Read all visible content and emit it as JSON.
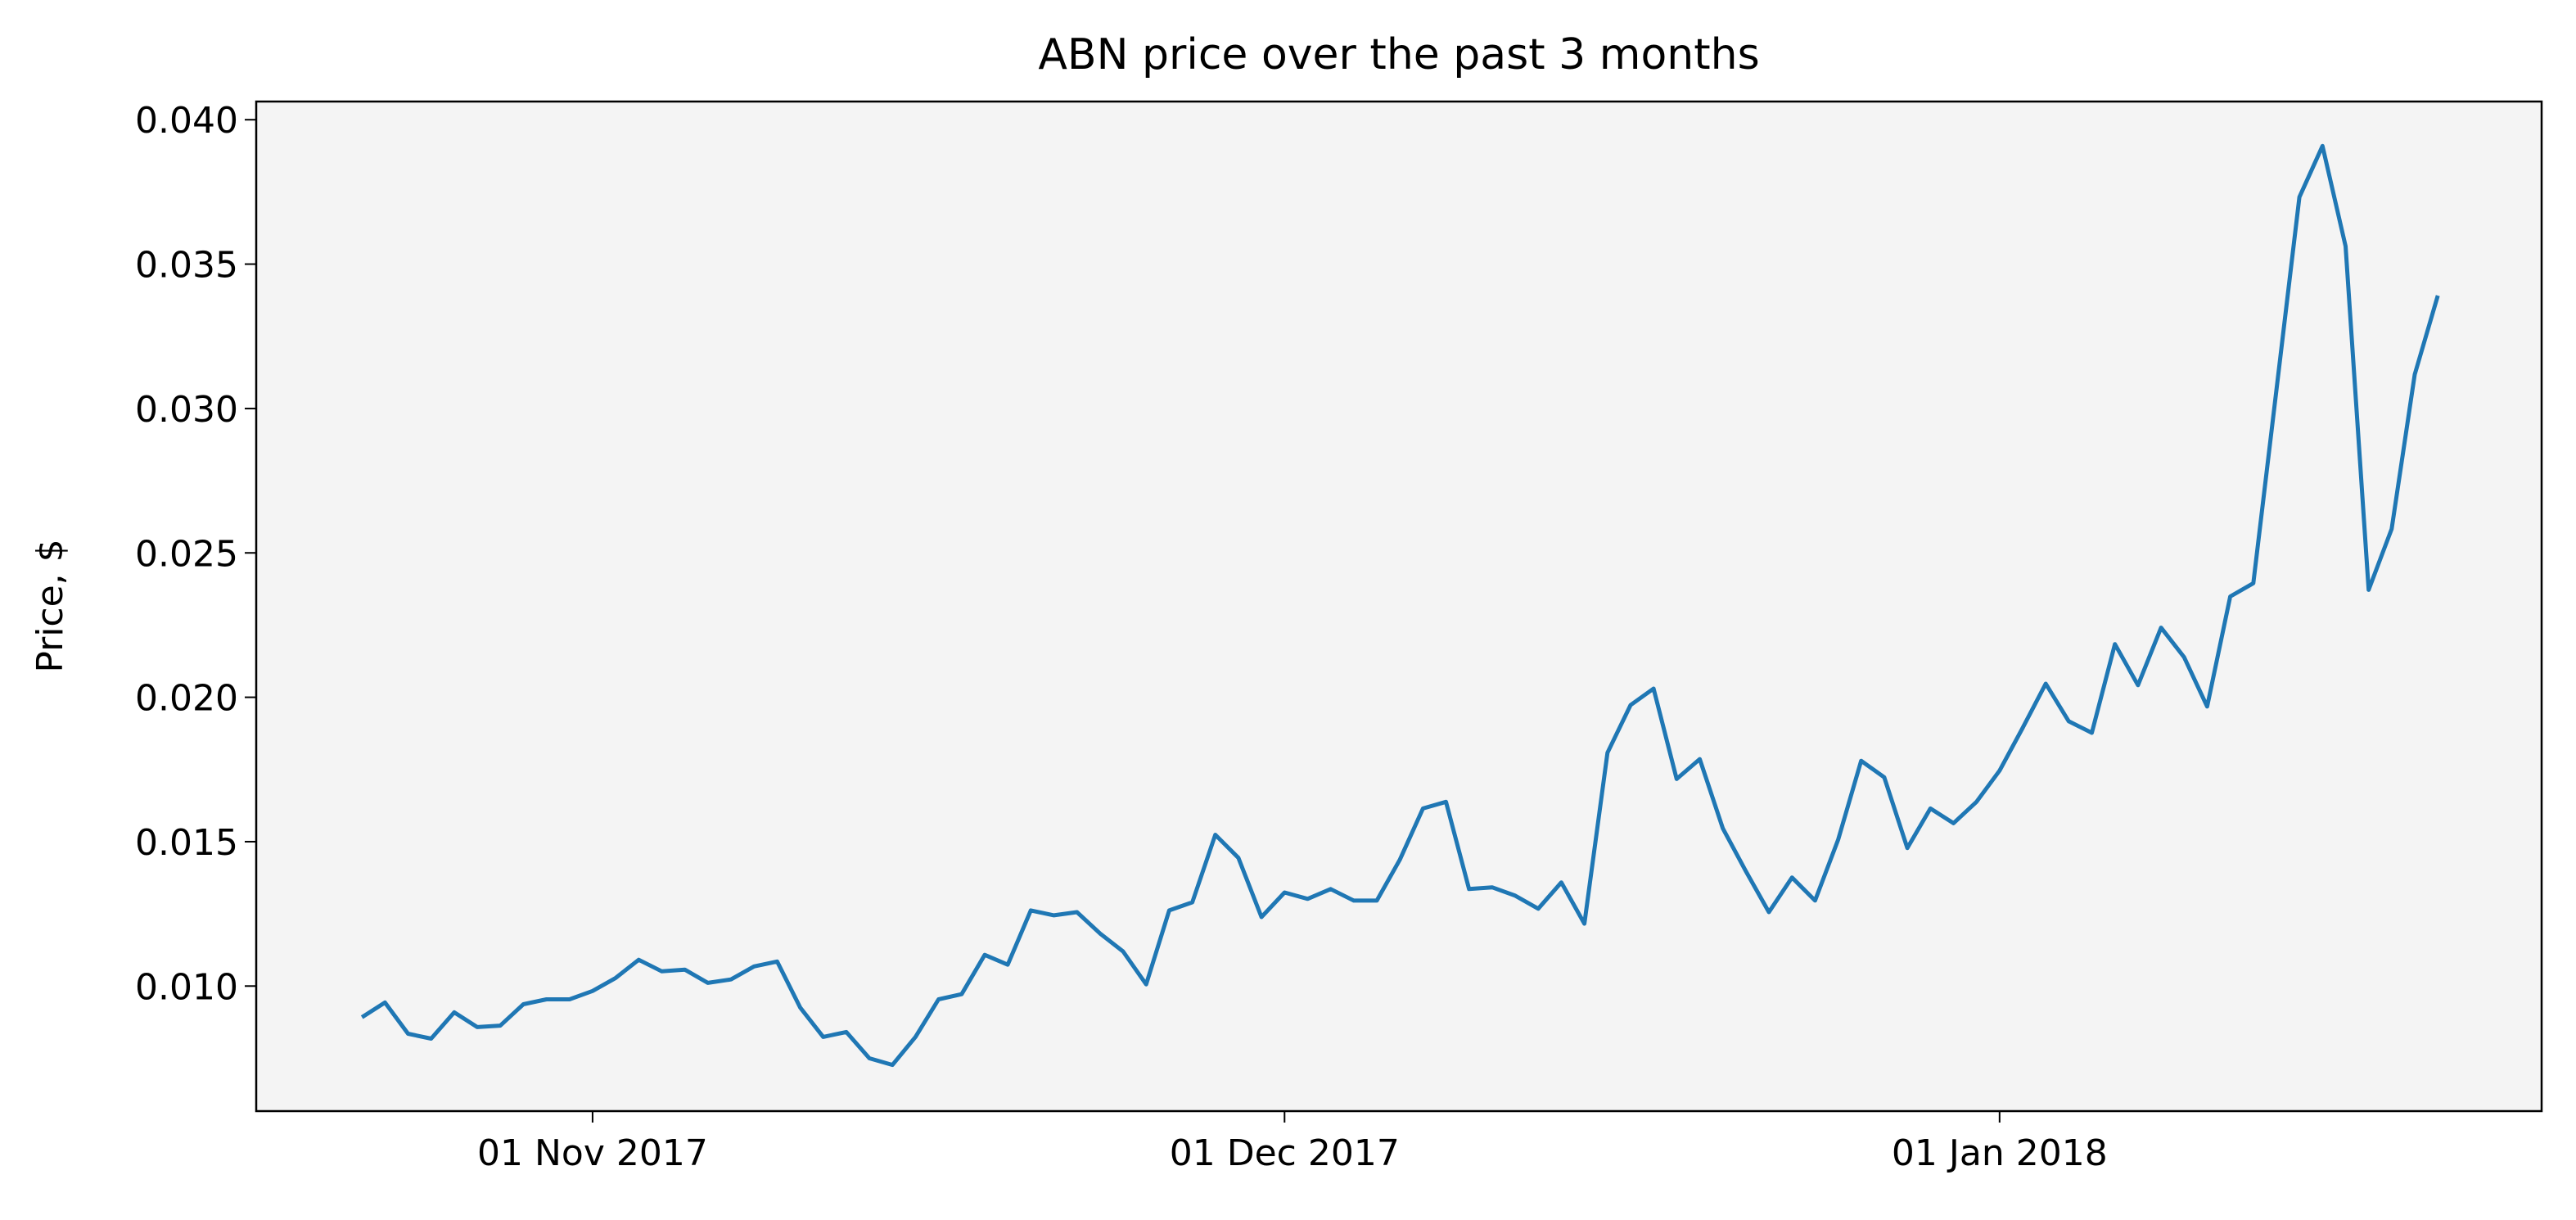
{
  "chart_data": {
    "type": "line",
    "title": "ABN price over the past 3 months",
    "ylabel": "Price, $",
    "x": [
      "2017-10-22",
      "2017-10-23",
      "2017-10-24",
      "2017-10-25",
      "2017-10-26",
      "2017-10-27",
      "2017-10-28",
      "2017-10-29",
      "2017-10-30",
      "2017-10-31",
      "2017-11-01",
      "2017-11-02",
      "2017-11-03",
      "2017-11-04",
      "2017-11-05",
      "2017-11-06",
      "2017-11-07",
      "2017-11-08",
      "2017-11-09",
      "2017-11-10",
      "2017-11-11",
      "2017-11-12",
      "2017-11-13",
      "2017-11-14",
      "2017-11-15",
      "2017-11-16",
      "2017-11-17",
      "2017-11-18",
      "2017-11-19",
      "2017-11-20",
      "2017-11-21",
      "2017-11-22",
      "2017-11-23",
      "2017-11-24",
      "2017-11-25",
      "2017-11-26",
      "2017-11-27",
      "2017-11-28",
      "2017-11-29",
      "2017-11-30",
      "2017-12-01",
      "2017-12-02",
      "2017-12-03",
      "2017-12-04",
      "2017-12-05",
      "2017-12-06",
      "2017-12-07",
      "2017-12-08",
      "2017-12-09",
      "2017-12-10",
      "2017-12-11",
      "2017-12-12",
      "2017-12-13",
      "2017-12-14",
      "2017-12-15",
      "2017-12-16",
      "2017-12-17",
      "2017-12-18",
      "2017-12-19",
      "2017-12-20",
      "2017-12-21",
      "2017-12-22",
      "2017-12-23",
      "2017-12-24",
      "2017-12-25",
      "2017-12-26",
      "2017-12-27",
      "2017-12-28",
      "2017-12-29",
      "2017-12-30",
      "2017-12-31",
      "2018-01-01",
      "2018-01-02",
      "2018-01-03",
      "2018-01-04",
      "2018-01-05",
      "2018-01-06",
      "2018-01-07",
      "2018-01-08",
      "2018-01-09",
      "2018-01-10",
      "2018-01-11",
      "2018-01-12",
      "2018-01-13",
      "2018-01-14",
      "2018-01-15",
      "2018-01-16",
      "2018-01-17",
      "2018-01-18",
      "2018-01-19",
      "2018-01-20"
    ],
    "series": [
      {
        "color": "#1f77b4",
        "values": [
          0.00892,
          0.00943,
          0.00835,
          0.00818,
          0.00909,
          0.00858,
          0.00863,
          0.00937,
          0.00954,
          0.00954,
          0.00983,
          0.01028,
          0.01091,
          0.01051,
          0.01057,
          0.01011,
          0.01023,
          0.01068,
          0.01085,
          0.00926,
          0.00824,
          0.00841,
          0.0075,
          0.00727,
          0.00824,
          0.00954,
          0.00972,
          0.01108,
          0.01074,
          0.01262,
          0.01245,
          0.01256,
          0.01182,
          0.0112,
          0.01006,
          0.01262,
          0.0129,
          0.01524,
          0.01444,
          0.01239,
          0.01324,
          0.01302,
          0.01336,
          0.01296,
          0.01296,
          0.01438,
          0.01615,
          0.01638,
          0.01336,
          0.01342,
          0.01313,
          0.01268,
          0.01359,
          0.01216,
          0.01808,
          0.01973,
          0.0203,
          0.01717,
          0.01786,
          0.01546,
          0.01398,
          0.01256,
          0.01376,
          0.01296,
          0.01507,
          0.0178,
          0.01723,
          0.01478,
          0.01615,
          0.01564,
          0.01638,
          0.01746,
          0.01894,
          0.02047,
          0.01917,
          0.01877,
          0.02184,
          0.02042,
          0.02241,
          0.02139,
          0.01968,
          0.02349,
          0.02395,
          0.03061,
          0.03732,
          0.03909,
          0.03562,
          0.02372,
          0.02583,
          0.03118,
          0.03391
        ]
      }
    ],
    "xlim": [
      "2017-10-17T10:00:00Z",
      "2018-01-24T12:00:00Z"
    ],
    "xticks": [
      {
        "value": "2017-11-01",
        "label": "01 Nov 2017"
      },
      {
        "value": "2017-12-01",
        "label": "01 Dec 2017"
      },
      {
        "value": "2018-01-01",
        "label": "01 Jan 2018"
      }
    ],
    "ylim": [
      0.00567,
      0.04063
    ],
    "yticks": [
      {
        "value": 0.01,
        "label": "0.010"
      },
      0.015,
      {
        "value": 0.02,
        "label": "0.020"
      },
      0.025,
      {
        "value": 0.03,
        "label": "0.030"
      },
      0.035,
      {
        "value": 0.04,
        "label": "0.040"
      }
    ],
    "background": "#f4f4f4"
  }
}
